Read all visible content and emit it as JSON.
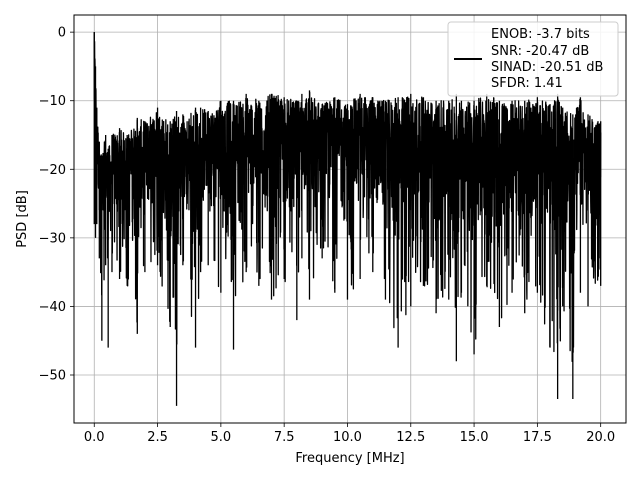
{
  "chart_data": {
    "type": "line",
    "title": "",
    "xlabel": "Frequency [MHz]",
    "ylabel": "PSD [dB]",
    "xlim": [
      -0.8,
      21.0
    ],
    "ylim": [
      -57,
      2.5
    ],
    "xticks": [
      0.0,
      2.5,
      5.0,
      7.5,
      10.0,
      12.5,
      15.0,
      17.5,
      20.0
    ],
    "xtick_labels": [
      "0.0",
      "2.5",
      "5.0",
      "7.5",
      "10.0",
      "12.5",
      "15.0",
      "17.5",
      "20.0"
    ],
    "yticks": [
      0,
      -10,
      -20,
      -30,
      -40,
      -50
    ],
    "ytick_labels": [
      "0",
      "−10",
      "−20",
      "−30",
      "−40",
      "−50"
    ],
    "grid": true,
    "legend_position": "top-right",
    "line_color": "#000000",
    "series": [
      {
        "name": "ENOB: -3.7 bits\nSNR: -20.47 dB\nSINAD: -20.51 dB\nSFDR: 1.41",
        "legend_lines": [
          "ENOB: -3.7 bits",
          "SNR: -20.47 dB",
          "SINAD: -20.51 dB",
          "SFDR: 1.41"
        ],
        "x": [
          0.0,
          0.05,
          0.1,
          0.2,
          0.3,
          0.45,
          0.55,
          0.7,
          1.0,
          1.3,
          1.7,
          2.0,
          2.5,
          3.0,
          3.25,
          3.5,
          4.0,
          4.2,
          4.5,
          5.0,
          5.5,
          6.0,
          6.5,
          7.0,
          7.5,
          8.0,
          8.2,
          8.5,
          9.0,
          9.5,
          10.0,
          10.5,
          11.0,
          11.5,
          12.0,
          12.5,
          13.0,
          13.5,
          14.0,
          14.3,
          14.5,
          15.0,
          15.5,
          16.0,
          16.5,
          17.0,
          17.5,
          18.0,
          18.3,
          18.5,
          18.9,
          19.2,
          19.5,
          20.0
        ],
        "upper": [
          0.0,
          -5.0,
          -11.0,
          -16.0,
          -18.0,
          -15.0,
          -17.0,
          -15.0,
          -14.0,
          -15.0,
          -12.5,
          -13.0,
          -11.0,
          -13.0,
          -11.5,
          -12.0,
          -11.0,
          -11.0,
          -11.5,
          -10.0,
          -10.0,
          -9.0,
          -10.0,
          -9.0,
          -9.5,
          -10.0,
          -9.0,
          -8.5,
          -10.5,
          -9.5,
          -10.5,
          -9.0,
          -9.5,
          -10.0,
          -9.5,
          -9.0,
          -9.5,
          -10.0,
          -10.0,
          -9.0,
          -10.0,
          -10.0,
          -9.0,
          -10.0,
          -10.0,
          -10.0,
          -9.5,
          -10.5,
          -9.0,
          -11.0,
          -12.0,
          -9.5,
          -12.0,
          -13.0
        ],
        "lower": [
          -28.0,
          -30.0,
          -28.0,
          -33.0,
          -45.0,
          -34.0,
          -46.0,
          -35.0,
          -36.0,
          -37.0,
          -44.0,
          -35.0,
          -34.0,
          -43.0,
          -54.5,
          -34.0,
          -46.0,
          -35.0,
          -34.0,
          -38.0,
          -46.3,
          -35.0,
          -37.0,
          -39.0,
          -36.0,
          -42.0,
          -33.0,
          -39.0,
          -33.0,
          -38.0,
          -39.0,
          -36.0,
          -35.0,
          -39.0,
          -46.0,
          -40.0,
          -37.0,
          -41.0,
          -39.0,
          -48.0,
          -38.0,
          -47.0,
          -37.0,
          -43.0,
          -38.0,
          -41.0,
          -38.0,
          -46.0,
          -53.5,
          -40.0,
          -53.5,
          -38.0,
          -40.0,
          -37.0
        ]
      }
    ]
  }
}
